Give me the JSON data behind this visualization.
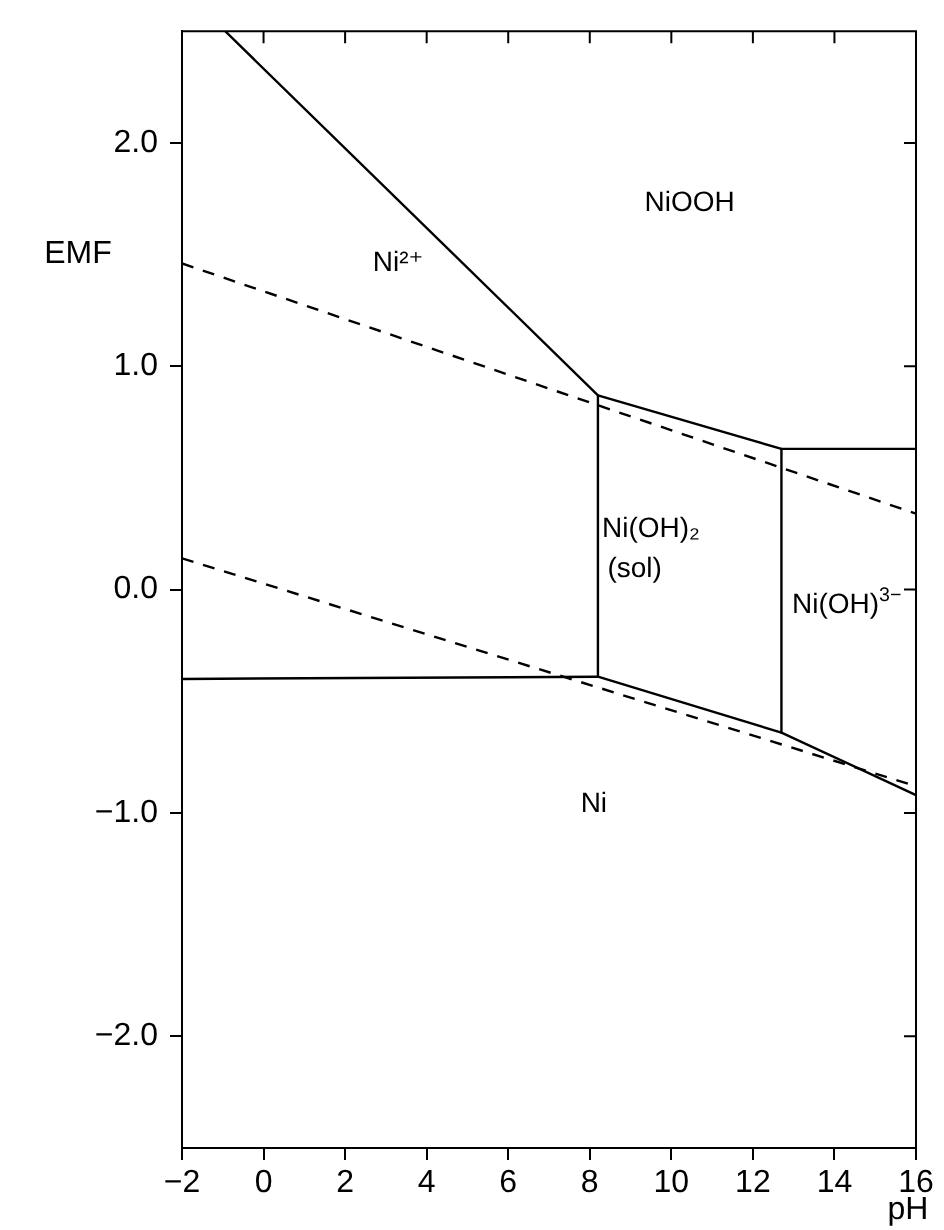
{
  "chart_data": {
    "type": "line",
    "xlabel": "pH",
    "ylabel": "EMF",
    "xlim": [
      -2,
      16
    ],
    "xticks": [
      {
        "value": -2,
        "label": "−2"
      },
      0,
      2,
      4,
      6,
      8,
      10,
      12,
      14,
      16
    ],
    "ylim": [
      -2.5,
      2.5
    ],
    "yticks": [
      {
        "value": -2,
        "label": "−2.0"
      },
      {
        "value": -1,
        "label": "−1.0"
      },
      {
        "value": 0,
        "label": "0.0"
      },
      {
        "value": 1,
        "label": "1.0"
      },
      {
        "value": 2,
        "label": "2.0"
      }
    ],
    "grid": false,
    "legend": false,
    "marker": "none",
    "series": [
      {
        "color": "#000000",
        "line_style": "solid",
        "x": [
          -0.94,
          8.2,
          12.7,
          16
        ],
        "values": [
          2.5,
          0.87,
          0.63,
          0.63
        ]
      },
      {
        "color": "#000000",
        "line_style": "solid",
        "x": [
          8.2,
          8.2
        ],
        "values": [
          0.87,
          -0.39
        ]
      },
      {
        "color": "#000000",
        "line_style": "solid",
        "x": [
          12.7,
          12.7
        ],
        "values": [
          0.63,
          -0.64
        ]
      },
      {
        "color": "#000000",
        "line_style": "solid",
        "x": [
          -2,
          8.2,
          12.7,
          16
        ],
        "values": [
          -0.4,
          -0.39,
          -0.64,
          -0.92
        ]
      },
      {
        "color": "#000000",
        "line_style": "dashed",
        "x": [
          -2,
          16
        ],
        "values": [
          1.46,
          0.34
        ]
      },
      {
        "color": "#000000",
        "line_style": "dashed",
        "x": [
          -2,
          16
        ],
        "values": [
          0.14,
          -0.88
        ]
      }
    ],
    "annotations": [
      "NiOOH",
      "Ni²⁺",
      "Ni(OH)₂",
      "(sol)",
      "Ni(OH)$^{3−}$",
      "Ni"
    ]
  }
}
